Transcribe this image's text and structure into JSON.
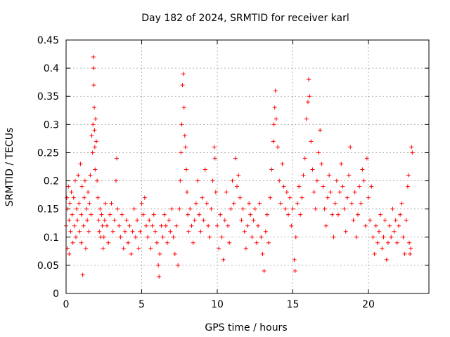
{
  "chart_data": {
    "type": "scatter",
    "title": "Day 182 of 2024, SRMTID for receiver karl",
    "xlabel": "GPS time / hours",
    "ylabel": "SRMTID / TECUs",
    "xlim": [
      0,
      24
    ],
    "ylim": [
      0,
      0.45
    ],
    "xticks": [
      0,
      5,
      10,
      15,
      20
    ],
    "yticks": [
      0,
      0.05,
      0.1,
      0.15,
      0.2,
      0.25,
      0.3,
      0.35,
      0.4,
      0.45
    ],
    "x_tick_labels": [
      "0",
      "5",
      "10",
      "15",
      "20"
    ],
    "y_tick_labels": [
      "0",
      "0.05",
      "0.1",
      "0.15",
      "0.2",
      "0.25",
      "0.3",
      "0.35",
      "0.4",
      "0.45"
    ],
    "grid": true,
    "marker": "+",
    "color": "#ff0000",
    "series": [
      {
        "points": [
          [
            0.0,
            0.12
          ],
          [
            0.05,
            0.17
          ],
          [
            0.1,
            0.08
          ],
          [
            0.1,
            0.15
          ],
          [
            0.15,
            0.19
          ],
          [
            0.2,
            0.13
          ],
          [
            0.2,
            0.07
          ],
          [
            0.25,
            0.16
          ],
          [
            0.3,
            0.11
          ],
          [
            0.35,
            0.18
          ],
          [
            0.4,
            0.14
          ],
          [
            0.45,
            0.09
          ],
          [
            0.5,
            0.17
          ],
          [
            0.55,
            0.12
          ],
          [
            0.6,
            0.2
          ],
          [
            0.65,
            0.1
          ],
          [
            0.7,
            0.15
          ],
          [
            0.75,
            0.13
          ],
          [
            0.8,
            0.21
          ],
          [
            0.85,
            0.16
          ],
          [
            0.9,
            0.11
          ],
          [
            0.95,
            0.23
          ],
          [
            1.0,
            0.14
          ],
          [
            1.0,
            0.09
          ],
          [
            1.05,
            0.19
          ],
          [
            1.1,
            0.033
          ],
          [
            1.15,
            0.12
          ],
          [
            1.2,
            0.17
          ],
          [
            1.25,
            0.2
          ],
          [
            1.3,
            0.08
          ],
          [
            1.35,
            0.15
          ],
          [
            1.4,
            0.13
          ],
          [
            1.45,
            0.18
          ],
          [
            1.5,
            0.11
          ],
          [
            1.55,
            0.16
          ],
          [
            1.6,
            0.21
          ],
          [
            1.65,
            0.14
          ],
          [
            1.7,
            0.28
          ],
          [
            1.75,
            0.25
          ],
          [
            1.78,
            0.3
          ],
          [
            1.8,
            0.42
          ],
          [
            1.82,
            0.4
          ],
          [
            1.84,
            0.37
          ],
          [
            1.86,
            0.33
          ],
          [
            1.88,
            0.29
          ],
          [
            1.9,
            0.26
          ],
          [
            1.92,
            0.22
          ],
          [
            1.95,
            0.31
          ],
          [
            2.0,
            0.27
          ],
          [
            2.05,
            0.2
          ],
          [
            2.1,
            0.17
          ],
          [
            2.15,
            0.13
          ],
          [
            2.2,
            0.11
          ],
          [
            2.25,
            0.15
          ],
          [
            2.3,
            0.1
          ],
          [
            2.35,
            0.14
          ],
          [
            2.4,
            0.12
          ],
          [
            2.45,
            0.08
          ],
          [
            2.5,
            0.1
          ],
          [
            2.55,
            0.13
          ],
          [
            2.6,
            0.16
          ],
          [
            2.7,
            0.12
          ],
          [
            2.8,
            0.09
          ],
          [
            2.9,
            0.14
          ],
          [
            3.0,
            0.16
          ],
          [
            3.1,
            0.11
          ],
          [
            3.2,
            0.13
          ],
          [
            3.3,
            0.2
          ],
          [
            3.35,
            0.24
          ],
          [
            3.4,
            0.15
          ],
          [
            3.5,
            0.12
          ],
          [
            3.6,
            0.1
          ],
          [
            3.7,
            0.14
          ],
          [
            3.8,
            0.08
          ],
          [
            3.9,
            0.11
          ],
          [
            4.0,
            0.13
          ],
          [
            4.1,
            0.09
          ],
          [
            4.2,
            0.12
          ],
          [
            4.3,
            0.07
          ],
          [
            4.4,
            0.11
          ],
          [
            4.5,
            0.15
          ],
          [
            4.6,
            0.1
          ],
          [
            4.7,
            0.13
          ],
          [
            4.8,
            0.08
          ],
          [
            4.9,
            0.11
          ],
          [
            5.0,
            0.16
          ],
          [
            5.1,
            0.14
          ],
          [
            5.2,
            0.17
          ],
          [
            5.3,
            0.12
          ],
          [
            5.4,
            0.1
          ],
          [
            5.5,
            0.13
          ],
          [
            5.6,
            0.08
          ],
          [
            5.7,
            0.12
          ],
          [
            5.8,
            0.14
          ],
          [
            5.9,
            0.11
          ],
          [
            6.0,
            0.09
          ],
          [
            6.1,
            0.05
          ],
          [
            6.15,
            0.03
          ],
          [
            6.2,
            0.07
          ],
          [
            6.3,
            0.12
          ],
          [
            6.4,
            0.1
          ],
          [
            6.5,
            0.14
          ],
          [
            6.6,
            0.12
          ],
          [
            6.7,
            0.09
          ],
          [
            6.8,
            0.13
          ],
          [
            6.9,
            0.11
          ],
          [
            7.0,
            0.15
          ],
          [
            7.1,
            0.1
          ],
          [
            7.2,
            0.07
          ],
          [
            7.3,
            0.12
          ],
          [
            7.4,
            0.05
          ],
          [
            7.5,
            0.15
          ],
          [
            7.55,
            0.2
          ],
          [
            7.6,
            0.25
          ],
          [
            7.65,
            0.3
          ],
          [
            7.7,
            0.37
          ],
          [
            7.75,
            0.39
          ],
          [
            7.8,
            0.33
          ],
          [
            7.85,
            0.28
          ],
          [
            7.9,
            0.26
          ],
          [
            7.95,
            0.22
          ],
          [
            8.0,
            0.18
          ],
          [
            8.05,
            0.14
          ],
          [
            8.1,
            0.11
          ],
          [
            8.2,
            0.15
          ],
          [
            8.3,
            0.12
          ],
          [
            8.4,
            0.09
          ],
          [
            8.5,
            0.13
          ],
          [
            8.6,
            0.16
          ],
          [
            8.7,
            0.2
          ],
          [
            8.8,
            0.14
          ],
          [
            8.9,
            0.11
          ],
          [
            9.0,
            0.17
          ],
          [
            9.1,
            0.13
          ],
          [
            9.2,
            0.22
          ],
          [
            9.3,
            0.16
          ],
          [
            9.4,
            0.12
          ],
          [
            9.5,
            0.1
          ],
          [
            9.6,
            0.15
          ],
          [
            9.7,
            0.2
          ],
          [
            9.8,
            0.26
          ],
          [
            9.85,
            0.24
          ],
          [
            9.9,
            0.18
          ],
          [
            10.0,
            0.12
          ],
          [
            10.1,
            0.08
          ],
          [
            10.2,
            0.14
          ],
          [
            10.3,
            0.1
          ],
          [
            10.4,
            0.06
          ],
          [
            10.5,
            0.13
          ],
          [
            10.6,
            0.18
          ],
          [
            10.7,
            0.12
          ],
          [
            10.8,
            0.09
          ],
          [
            10.9,
            0.15
          ],
          [
            11.0,
            0.2
          ],
          [
            11.1,
            0.16
          ],
          [
            11.2,
            0.24
          ],
          [
            11.3,
            0.19
          ],
          [
            11.4,
            0.21
          ],
          [
            11.5,
            0.17
          ],
          [
            11.6,
            0.13
          ],
          [
            11.7,
            0.15
          ],
          [
            11.8,
            0.11
          ],
          [
            11.9,
            0.08
          ],
          [
            12.0,
            0.12
          ],
          [
            12.1,
            0.16
          ],
          [
            12.2,
            0.14
          ],
          [
            12.3,
            0.1
          ],
          [
            12.4,
            0.13
          ],
          [
            12.5,
            0.15
          ],
          [
            12.6,
            0.09
          ],
          [
            12.7,
            0.12
          ],
          [
            12.8,
            0.16
          ],
          [
            12.9,
            0.1
          ],
          [
            13.0,
            0.07
          ],
          [
            13.1,
            0.04
          ],
          [
            13.2,
            0.11
          ],
          [
            13.3,
            0.14
          ],
          [
            13.4,
            0.09
          ],
          [
            13.5,
            0.17
          ],
          [
            13.6,
            0.22
          ],
          [
            13.7,
            0.27
          ],
          [
            13.75,
            0.3
          ],
          [
            13.8,
            0.33
          ],
          [
            13.85,
            0.36
          ],
          [
            13.9,
            0.31
          ],
          [
            14.0,
            0.26
          ],
          [
            14.1,
            0.2
          ],
          [
            14.2,
            0.16
          ],
          [
            14.3,
            0.23
          ],
          [
            14.4,
            0.19
          ],
          [
            14.5,
            0.15
          ],
          [
            14.6,
            0.18
          ],
          [
            14.7,
            0.14
          ],
          [
            14.8,
            0.17
          ],
          [
            14.9,
            0.12
          ],
          [
            15.0,
            0.15
          ],
          [
            15.1,
            0.06
          ],
          [
            15.15,
            0.04
          ],
          [
            15.2,
            0.1
          ],
          [
            15.3,
            0.16
          ],
          [
            15.4,
            0.19
          ],
          [
            15.5,
            0.14
          ],
          [
            15.6,
            0.17
          ],
          [
            15.7,
            0.21
          ],
          [
            15.8,
            0.24
          ],
          [
            15.9,
            0.31
          ],
          [
            16.0,
            0.34
          ],
          [
            16.05,
            0.38
          ],
          [
            16.1,
            0.35
          ],
          [
            16.2,
            0.27
          ],
          [
            16.3,
            0.22
          ],
          [
            16.4,
            0.18
          ],
          [
            16.5,
            0.15
          ],
          [
            16.6,
            0.2
          ],
          [
            16.7,
            0.25
          ],
          [
            16.8,
            0.29
          ],
          [
            16.9,
            0.23
          ],
          [
            17.0,
            0.19
          ],
          [
            17.1,
            0.15
          ],
          [
            17.2,
            0.12
          ],
          [
            17.3,
            0.17
          ],
          [
            17.4,
            0.21
          ],
          [
            17.5,
            0.18
          ],
          [
            17.6,
            0.14
          ],
          [
            17.7,
            0.1
          ],
          [
            17.8,
            0.16
          ],
          [
            17.9,
            0.2
          ],
          [
            18.0,
            0.14
          ],
          [
            18.1,
            0.18
          ],
          [
            18.2,
            0.23
          ],
          [
            18.3,
            0.19
          ],
          [
            18.4,
            0.15
          ],
          [
            18.5,
            0.11
          ],
          [
            18.6,
            0.17
          ],
          [
            18.7,
            0.21
          ],
          [
            18.8,
            0.26
          ],
          [
            18.9,
            0.16
          ],
          [
            19.0,
            0.13
          ],
          [
            19.1,
            0.18
          ],
          [
            19.2,
            0.1
          ],
          [
            19.3,
            0.14
          ],
          [
            19.4,
            0.19
          ],
          [
            19.5,
            0.16
          ],
          [
            19.6,
            0.22
          ],
          [
            19.7,
            0.2
          ],
          [
            19.8,
            0.12
          ],
          [
            19.9,
            0.24
          ],
          [
            20.0,
            0.17
          ],
          [
            20.1,
            0.13
          ],
          [
            20.2,
            0.19
          ],
          [
            20.3,
            0.1
          ],
          [
            20.4,
            0.07
          ],
          [
            20.5,
            0.12
          ],
          [
            20.6,
            0.09
          ],
          [
            20.7,
            0.11
          ],
          [
            20.8,
            0.14
          ],
          [
            20.9,
            0.08
          ],
          [
            21.0,
            0.1
          ],
          [
            21.1,
            0.13
          ],
          [
            21.2,
            0.06
          ],
          [
            21.3,
            0.09
          ],
          [
            21.4,
            0.12
          ],
          [
            21.5,
            0.1
          ],
          [
            21.6,
            0.15
          ],
          [
            21.7,
            0.11
          ],
          [
            21.8,
            0.13
          ],
          [
            21.9,
            0.09
          ],
          [
            22.0,
            0.12
          ],
          [
            22.1,
            0.14
          ],
          [
            22.2,
            0.16
          ],
          [
            22.3,
            0.1
          ],
          [
            22.4,
            0.07
          ],
          [
            22.5,
            0.13
          ],
          [
            22.6,
            0.19
          ],
          [
            22.65,
            0.21
          ],
          [
            22.7,
            0.09
          ],
          [
            22.75,
            0.07
          ],
          [
            22.8,
            0.08
          ],
          [
            22.85,
            0.26
          ],
          [
            22.9,
            0.25
          ]
        ]
      }
    ]
  }
}
